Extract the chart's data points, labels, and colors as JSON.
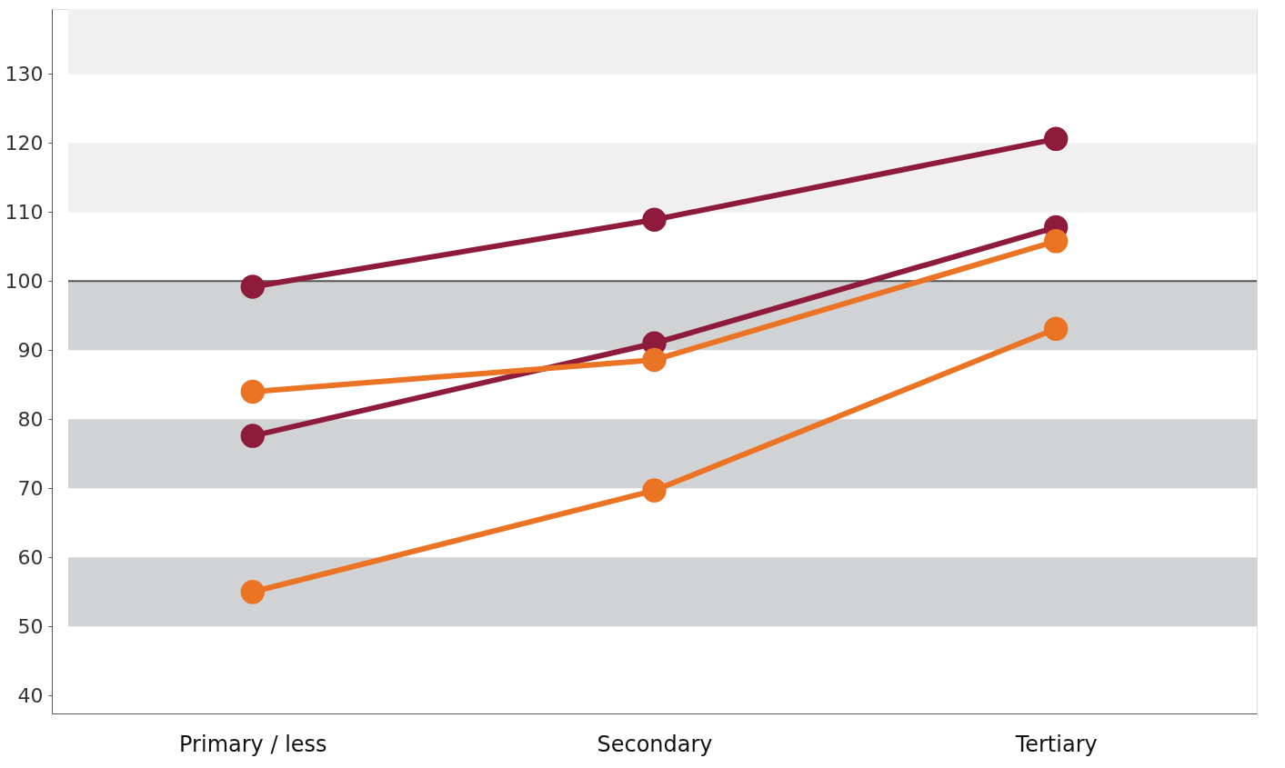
{
  "chart_data": {
    "type": "line",
    "categories": [
      "Primary / less",
      "Secondary",
      "Tertiary"
    ],
    "series": [
      {
        "color": "#8e1a3c",
        "values": [
          99.2,
          108.9,
          120.6
        ]
      },
      {
        "color": "#8e1a3c",
        "values": [
          77.6,
          91,
          107.8
        ]
      },
      {
        "color": "#eb7324",
        "values": [
          84,
          88.6,
          105.8
        ]
      },
      {
        "color": "#eb7324",
        "values": [
          55,
          69.7,
          93.1
        ]
      }
    ],
    "marker": "circle",
    "ylim": [
      37.4,
      139.4
    ],
    "yticks": [
      40,
      50,
      60,
      70,
      80,
      90,
      100,
      110,
      120,
      130
    ],
    "bands": [
      {
        "axis": "y",
        "from": 130,
        "to": 139.4,
        "color": "#f0f0f0"
      },
      {
        "axis": "y",
        "from": 110,
        "to": 120,
        "color": "#f0f0f0"
      },
      {
        "axis": "y",
        "from": 90,
        "to": 100,
        "color": "#d1d2d4"
      },
      {
        "axis": "y",
        "from": 70,
        "to": 80,
        "color": "#d1d2d4"
      },
      {
        "axis": "y",
        "from": 50,
        "to": 60,
        "color": "#d1d2d4"
      }
    ],
    "ref_lines": [
      {
        "axis": "y",
        "value": 100,
        "color": "#555555"
      }
    ],
    "grid": false
  }
}
